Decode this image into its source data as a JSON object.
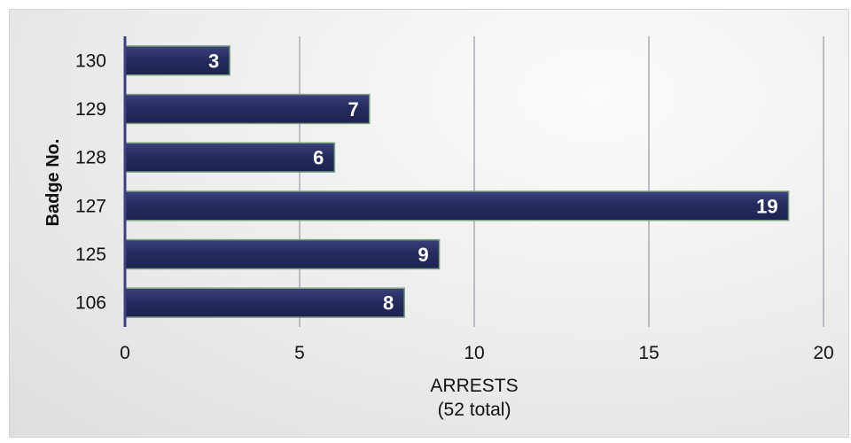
{
  "chart_data": {
    "type": "bar",
    "orientation": "horizontal",
    "categories": [
      "130",
      "129",
      "128",
      "127",
      "125",
      "106"
    ],
    "values": [
      3,
      7,
      6,
      19,
      9,
      8
    ],
    "xlabel": "ARRESTS",
    "xlabel_sub": "(52 total)",
    "ylabel": "Badge No.",
    "xlim": [
      0,
      20
    ],
    "xticks": [
      0,
      5,
      10,
      15,
      20
    ],
    "grid": "vertical",
    "data_labels": true,
    "colors": {
      "bar": "#242a5c",
      "bar_edge": "#7aa07a",
      "axis": "#3d3f85",
      "grid": "#a9a9b3"
    }
  }
}
